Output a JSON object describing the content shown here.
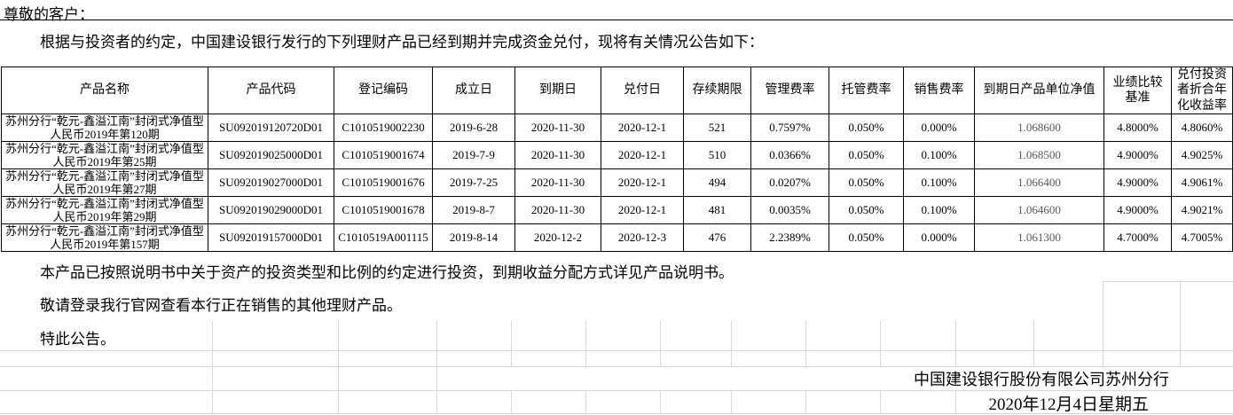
{
  "page": {
    "salutation": "尊敬的客户：",
    "intro": "根据与投资者的约定，中国建设银行发行的下列理财产品已经到期并完成资金兑付，现将有关情况公告如下：",
    "notes": [
      "本产品已按照说明书中关于资产的投资类型和比例的约定进行投资，到期收益分配方式详见产品说明书。",
      "敬请登录我行官网查看本行正在销售的其他理财产品。",
      "特此公告。"
    ],
    "signature": "中国建设银行股份有限公司苏州分行",
    "date": "2020年12月4日星期五"
  },
  "table": {
    "headers": [
      "产品名称",
      "产品代码",
      "登记编码",
      "成立日",
      "到期日",
      "兑付日",
      "存续期限",
      "管理费率",
      "托管费率",
      "销售费率",
      "到期日产品单位净值",
      "业绩比较基准",
      "兑付投资者折合年化收益率"
    ],
    "rows": [
      [
        "苏州分行“乾元-鑫溢江南”封闭式净值型人民币2019年第120期",
        "SU092019120720D01",
        "C1010519002230",
        "2019-6-28",
        "2020-11-30",
        "2020-12-1",
        "521",
        "0.7597%",
        "0.050%",
        "0.000%",
        "1.068600",
        "4.8000%",
        "4.8060%"
      ],
      [
        "苏州分行“乾元-鑫溢江南”封闭式净值型人民币2019年第25期",
        "SU092019025000D01",
        "C1010519001674",
        "2019-7-9",
        "2020-11-30",
        "2020-12-1",
        "510",
        "0.0366%",
        "0.050%",
        "0.100%",
        "1.068500",
        "4.9000%",
        "4.9025%"
      ],
      [
        "苏州分行“乾元-鑫溢江南”封闭式净值型人民币2019年第27期",
        "SU092019027000D01",
        "C1010519001676",
        "2019-7-25",
        "2020-11-30",
        "2020-12-1",
        "494",
        "0.0207%",
        "0.050%",
        "0.100%",
        "1.066400",
        "4.9000%",
        "4.9061%"
      ],
      [
        "苏州分行“乾元-鑫溢江南”封闭式净值型人民币2019年第29期",
        "SU092019029000D01",
        "C1010519001678",
        "2019-8-7",
        "2020-11-30",
        "2020-12-1",
        "481",
        "0.0035%",
        "0.050%",
        "0.100%",
        "1.064600",
        "4.9000%",
        "4.9021%"
      ],
      [
        "苏州分行“乾元-鑫溢江南”封闭式净值型人民币2019年第157期",
        "SU092019157000D01",
        "C1010519A001115",
        "2019-8-14",
        "2020-12-2",
        "2020-12-3",
        "476",
        "2.2389%",
        "0.050%",
        "0.000%",
        "1.061300",
        "4.7000%",
        "4.7005%"
      ]
    ]
  },
  "colors": {
    "text": "#000000",
    "table_border": "#000000",
    "net_value_text": "#595959",
    "excel_gridline": "#d9d9d9",
    "background": "#ffffff"
  }
}
